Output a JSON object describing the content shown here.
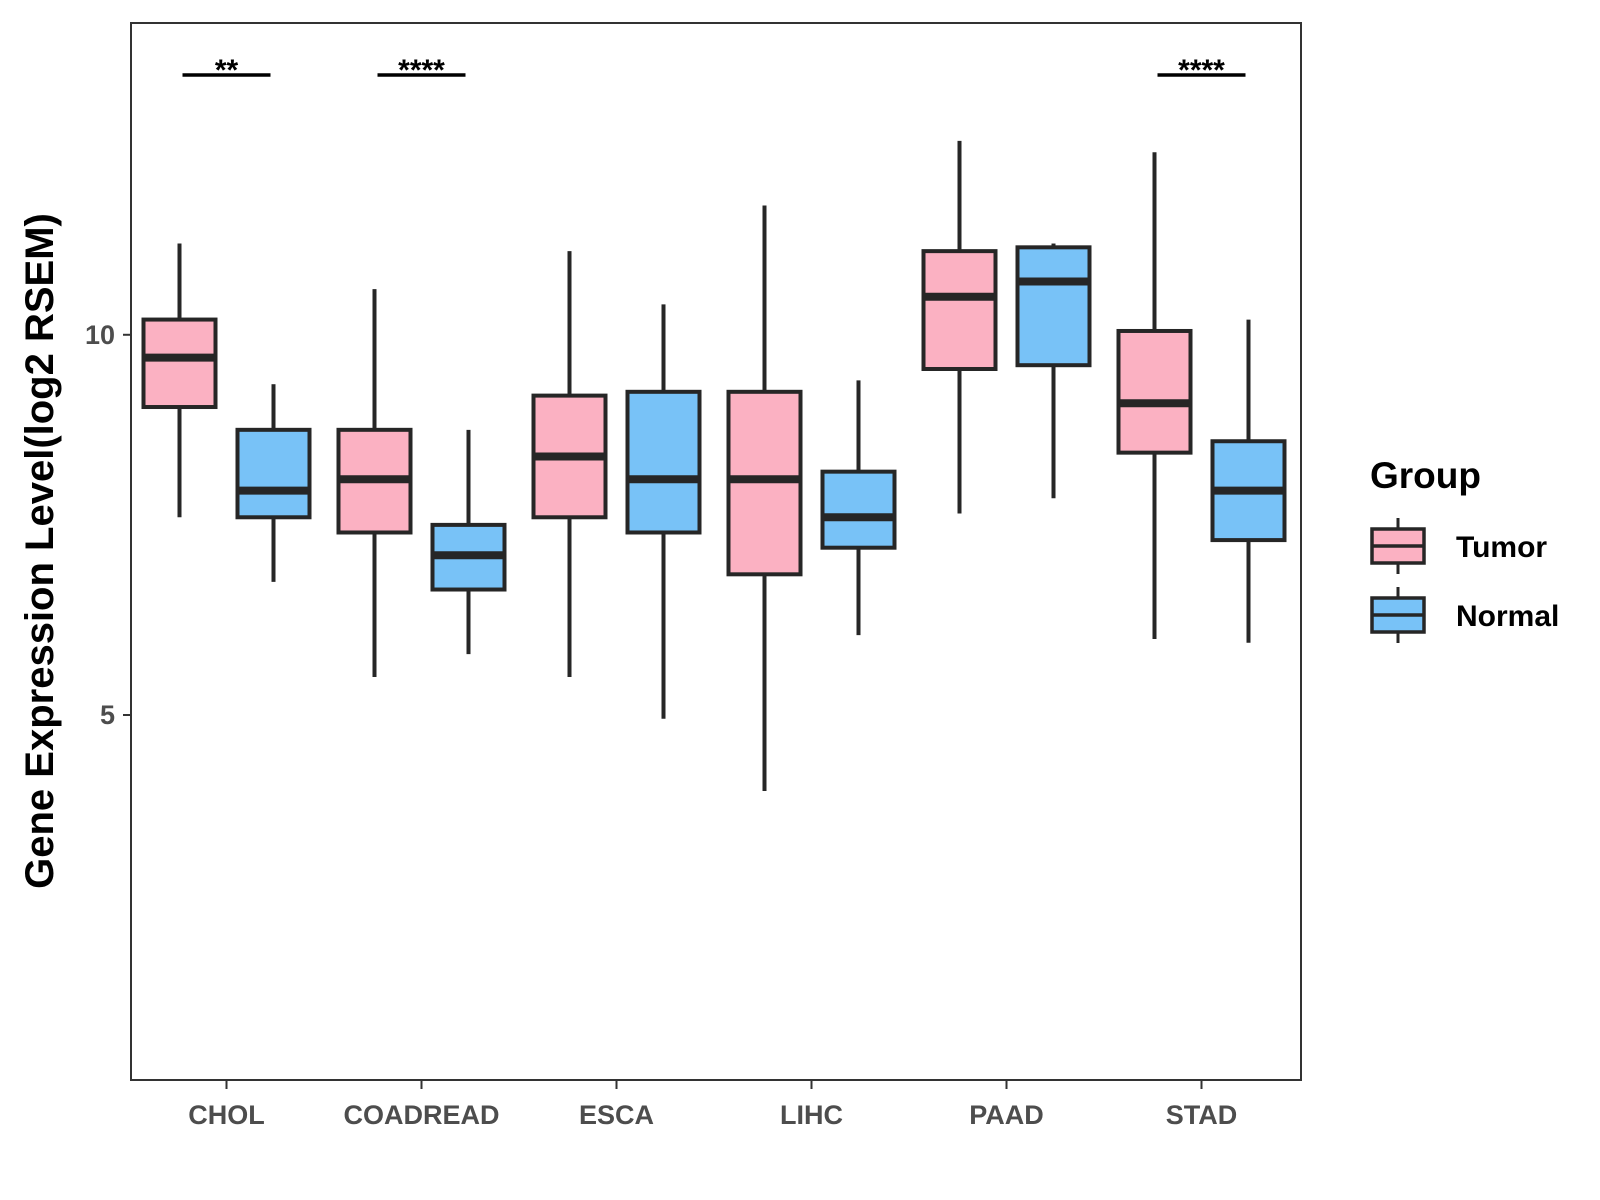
{
  "chart_data": {
    "type": "boxplot",
    "title": "",
    "xlabel": "",
    "ylabel": "Gene Expression Level(log2 RSEM)",
    "ylim": [
      0.2,
      14.1
    ],
    "yticks": [
      5,
      10
    ],
    "grid": false,
    "legend_position": "right",
    "legend_title": "Group",
    "categories": [
      "CHOL",
      "COADREAD",
      "ESCA",
      "LIHC",
      "PAAD",
      "STAD"
    ],
    "series": [
      {
        "name": "Tumor",
        "color": "#FBB1C2",
        "boxes": [
          {
            "min": 7.6,
            "q1": 9.05,
            "median": 9.7,
            "q3": 10.2,
            "max": 11.2
          },
          {
            "min": 5.5,
            "q1": 7.4,
            "median": 8.1,
            "q3": 8.75,
            "max": 10.6
          },
          {
            "min": 5.5,
            "q1": 7.6,
            "median": 8.4,
            "q3": 9.2,
            "max": 11.1
          },
          {
            "min": 4.0,
            "q1": 6.85,
            "median": 8.1,
            "q3": 9.25,
            "max": 11.7
          },
          {
            "min": 7.65,
            "q1": 9.55,
            "median": 10.5,
            "q3": 11.1,
            "max": 12.55
          },
          {
            "min": 6.0,
            "q1": 8.45,
            "median": 9.1,
            "q3": 10.05,
            "max": 12.4
          }
        ]
      },
      {
        "name": "Normal",
        "color": "#78C2F7",
        "boxes": [
          {
            "min": 6.75,
            "q1": 7.6,
            "median": 7.95,
            "q3": 8.75,
            "max": 9.35
          },
          {
            "min": 5.8,
            "q1": 6.65,
            "median": 7.1,
            "q3": 7.5,
            "max": 8.75
          },
          {
            "min": 4.95,
            "q1": 7.4,
            "median": 8.1,
            "q3": 9.25,
            "max": 10.4
          },
          {
            "min": 6.05,
            "q1": 7.2,
            "median": 7.6,
            "q3": 8.2,
            "max": 9.4
          },
          {
            "min": 7.85,
            "q1": 9.6,
            "median": 10.7,
            "q3": 11.15,
            "max": 11.2
          },
          {
            "min": 5.95,
            "q1": 7.3,
            "median": 7.95,
            "q3": 8.6,
            "max": 10.2
          }
        ]
      }
    ],
    "significance": [
      {
        "category": "CHOL",
        "label": "**"
      },
      {
        "category": "COADREAD",
        "label": "****"
      },
      {
        "category": "STAD",
        "label": "****"
      }
    ]
  }
}
